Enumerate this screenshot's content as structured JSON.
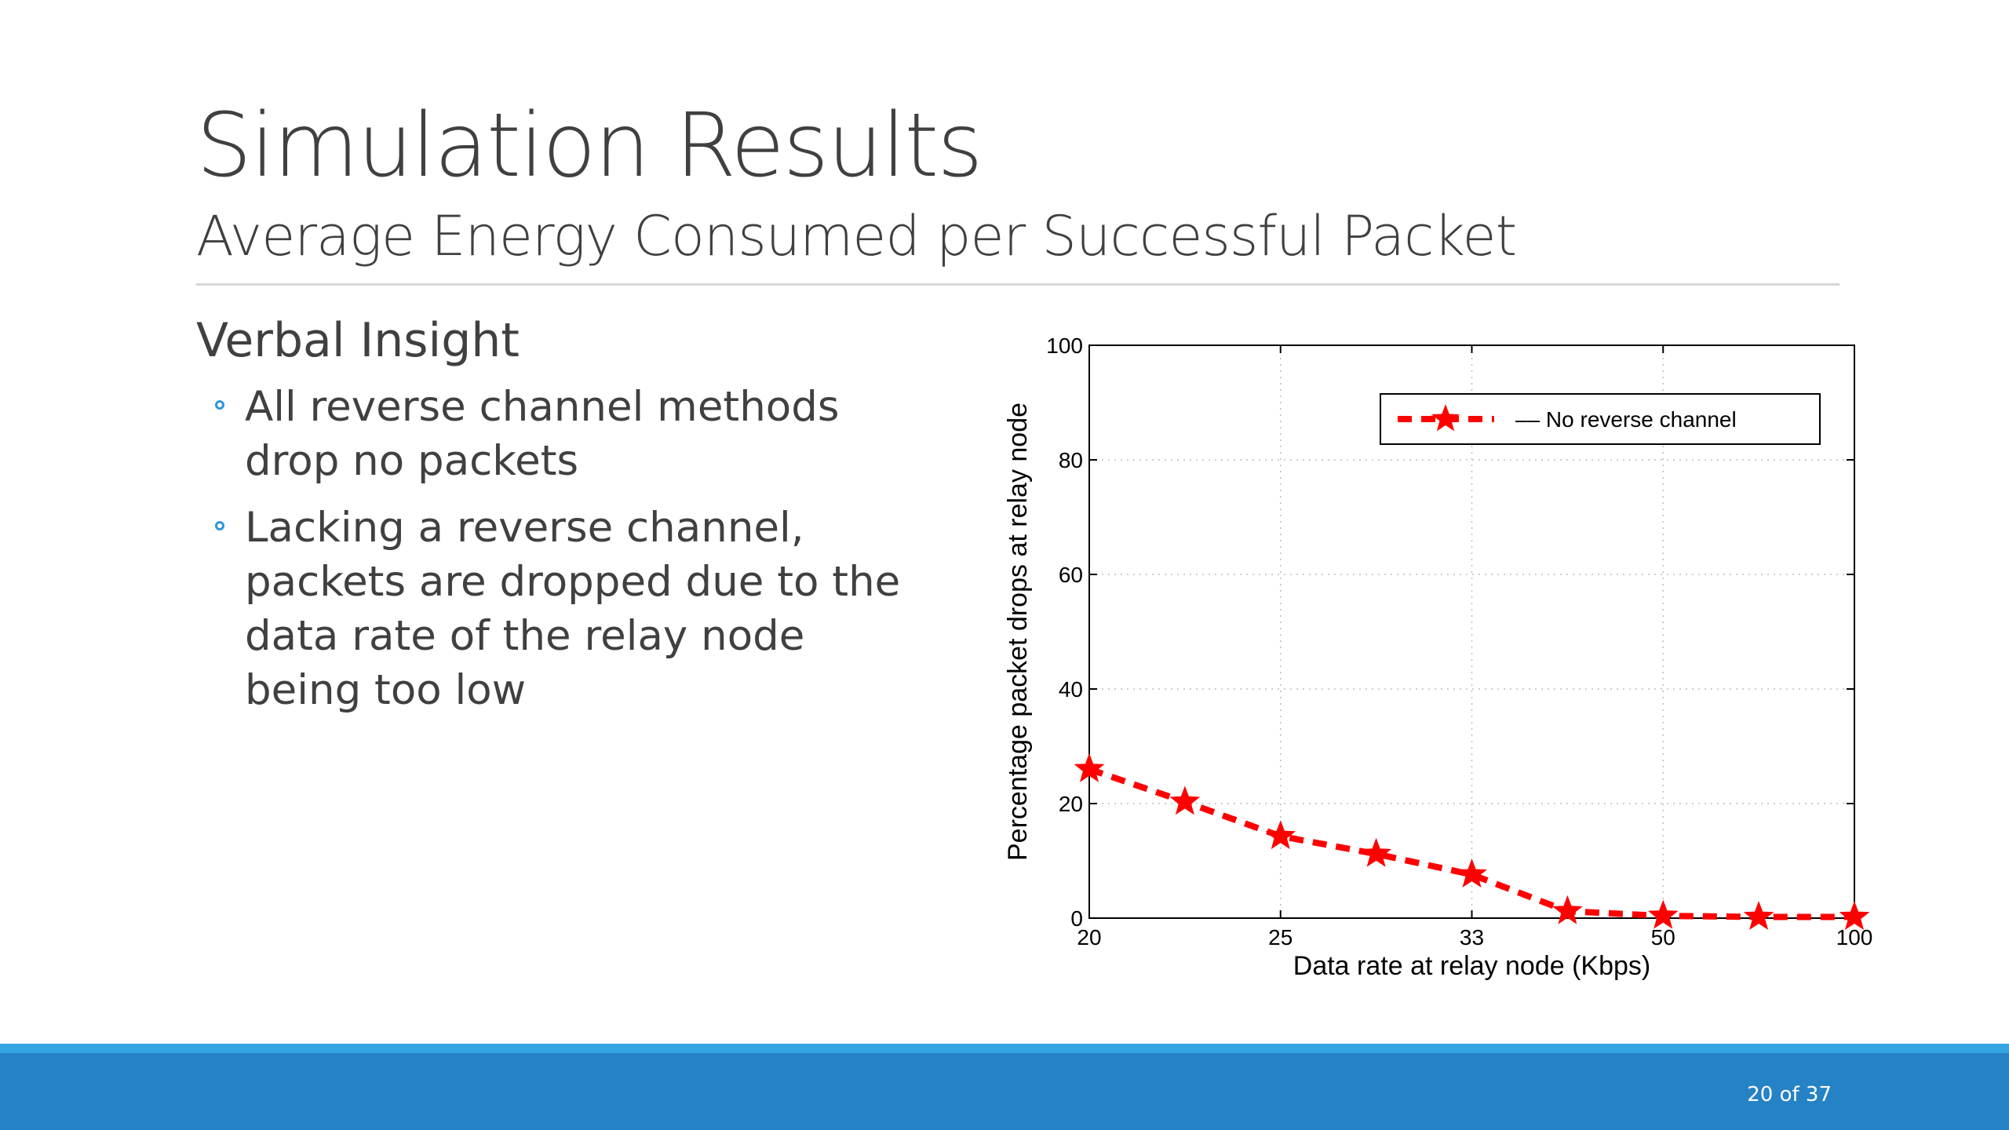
{
  "slide": {
    "title": "Simulation Results",
    "subtitle": "Average Energy Consumed per Successful Packet",
    "section_heading": "Verbal Insight",
    "bullets": [
      "All reverse channel methods drop no packets",
      "Lacking a reverse channel, packets are dropped due to the data rate of the relay node being too low"
    ],
    "page_number": "20 of 37"
  },
  "colors": {
    "accent": "#2e97d8",
    "footer_bar": "#2582c5",
    "footer_stripe": "#35a6e2",
    "series": "#ff0000"
  },
  "chart_data": {
    "type": "line",
    "xlabel": "Data rate at relay node (Kbps)",
    "ylabel": "Percentage packet drops at relay node",
    "xticks": [
      "20",
      "25",
      "33",
      "50",
      "100"
    ],
    "xtick_positions": [
      0,
      2,
      4,
      6,
      8
    ],
    "xlim": [
      0,
      8
    ],
    "yticks": [
      0,
      20,
      40,
      60,
      80,
      100
    ],
    "ylim": [
      0,
      100
    ],
    "grid": true,
    "legend_position": "top-right",
    "series": [
      {
        "name": "–– No reverse channel",
        "x": [
          0,
          1,
          2,
          3,
          4,
          5,
          6,
          7,
          8
        ],
        "y": [
          26,
          20.3,
          14.3,
          11.2,
          7.6,
          1.2,
          0.4,
          0.2,
          0.2
        ]
      }
    ]
  }
}
